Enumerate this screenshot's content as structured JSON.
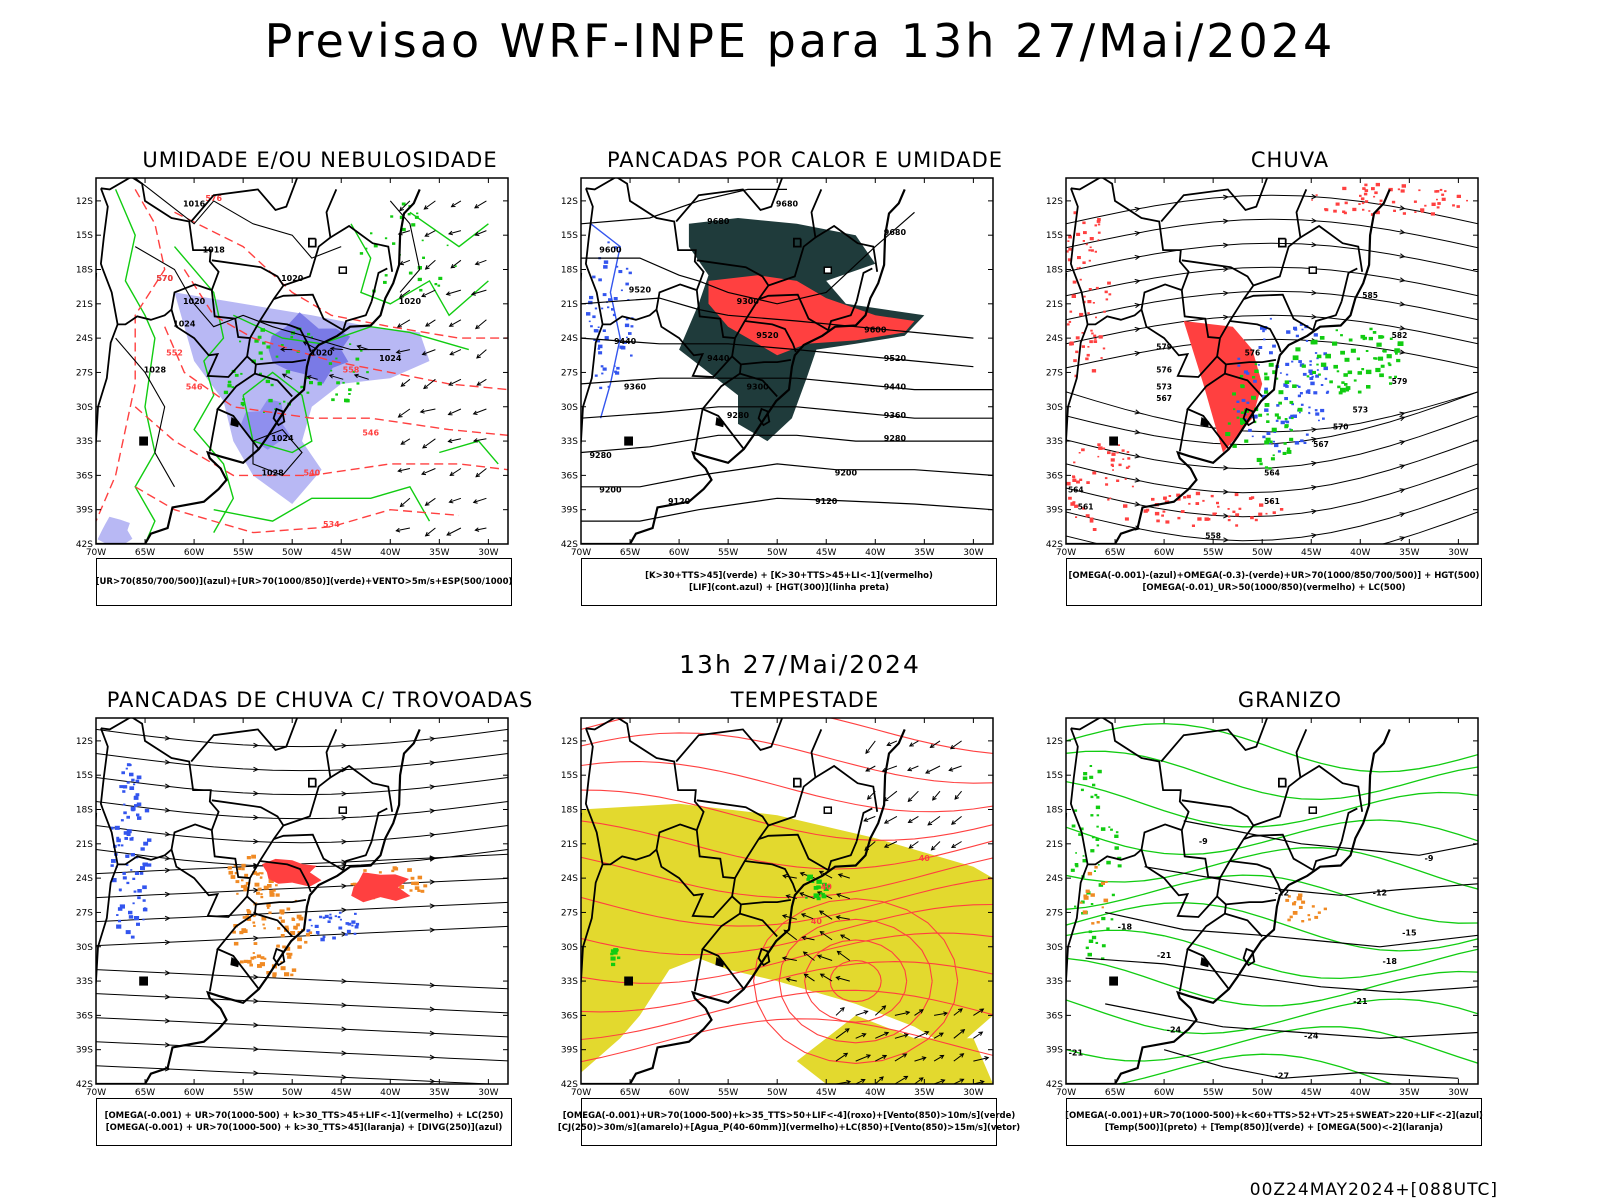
{
  "title": "Previsao WRF-INPE  para 13h 27/Mai/2024",
  "subtitle": "13h 27/Mai/2024",
  "footer": "00Z24MAY2024+[088UTC]",
  "axes": {
    "lat_labels": [
      "12S",
      "15S",
      "18S",
      "21S",
      "24S",
      "27S",
      "30S",
      "33S",
      "36S",
      "39S",
      "42S"
    ],
    "lon_labels": [
      "70W",
      "65W",
      "60W",
      "55W",
      "50W",
      "45W",
      "40W",
      "35W",
      "30W"
    ]
  },
  "colors": {
    "blue": "#3355ee",
    "lavender": "#b8b8f4",
    "green": "#11cc11",
    "red": "#ff4040",
    "darkslate": "#1f3b3b",
    "yellow": "#e3d92e",
    "orange": "#f08a24",
    "black": "#000000"
  },
  "chart_data": [
    {
      "type": "map",
      "title": "UMIDADE E/OU NEBULOSIDADE",
      "legend": [
        "[UR>70(850/700/500)](azul)+[UR>70(1000/850)](verde)+VENTO>5m/s+ESP(500/1000)"
      ],
      "contour_labels": [
        {
          "text": "1016",
          "lon": -60,
          "lat": -12.5
        },
        {
          "text": "1018",
          "lon": -58,
          "lat": -16.5
        },
        {
          "text": "1020",
          "lon": -50,
          "lat": -19
        },
        {
          "text": "1020",
          "lon": -60,
          "lat": -21
        },
        {
          "text": "1024",
          "lon": -61,
          "lat": -23
        },
        {
          "text": "1028",
          "lon": -64,
          "lat": -27
        },
        {
          "text": "1020",
          "lon": -47,
          "lat": -25.5
        },
        {
          "text": "1024",
          "lon": -40,
          "lat": -26
        },
        {
          "text": "1024",
          "lon": -51,
          "lat": -33
        },
        {
          "text": "1028",
          "lon": -52,
          "lat": -36
        },
        {
          "text": "1020",
          "lon": -38,
          "lat": -21
        },
        {
          "text": "570",
          "lon": -63,
          "lat": -19
        },
        {
          "text": "576",
          "lon": -58,
          "lat": -12
        },
        {
          "text": "546",
          "lon": -60,
          "lat": -28.5
        },
        {
          "text": "552",
          "lon": -62,
          "lat": -25.5
        },
        {
          "text": "540",
          "lon": -48,
          "lat": -36
        },
        {
          "text": "534",
          "lon": -46,
          "lat": -40.5
        },
        {
          "text": "546",
          "lon": -42,
          "lat": -32.5
        },
        {
          "text": "558",
          "lon": -44,
          "lat": -27
        }
      ]
    },
    {
      "type": "map",
      "title": "PANCADAS POR CALOR E UMIDADE",
      "legend": [
        "[K>30+TTS>45](verde) + [K>30+TTS>45+LI<-1](vermelho)",
        "[LIF](cont.azul) + [HGT(300)](linha preta)"
      ],
      "contour_labels": [
        {
          "text": "9680",
          "lon": -56,
          "lat": -14
        },
        {
          "text": "9680",
          "lon": -49,
          "lat": -12.5
        },
        {
          "text": "9680",
          "lon": -38,
          "lat": -15
        },
        {
          "text": "9600",
          "lon": -67,
          "lat": -16.5
        },
        {
          "text": "9520",
          "lon": -64,
          "lat": -20
        },
        {
          "text": "9440",
          "lon": -65.5,
          "lat": -24.5
        },
        {
          "text": "9360",
          "lon": -64.5,
          "lat": -28.5
        },
        {
          "text": "9300",
          "lon": -53,
          "lat": -21
        },
        {
          "text": "9520",
          "lon": -51,
          "lat": -24
        },
        {
          "text": "9440",
          "lon": -56,
          "lat": -26
        },
        {
          "text": "9300",
          "lon": -52,
          "lat": -28.5
        },
        {
          "text": "9280",
          "lon": -54,
          "lat": -31
        },
        {
          "text": "9600",
          "lon": -40,
          "lat": -23.5
        },
        {
          "text": "9520",
          "lon": -38,
          "lat": -26
        },
        {
          "text": "9440",
          "lon": -38,
          "lat": -28.5
        },
        {
          "text": "9360",
          "lon": -38,
          "lat": -31
        },
        {
          "text": "9280",
          "lon": -38,
          "lat": -33
        },
        {
          "text": "9200",
          "lon": -43,
          "lat": -36
        },
        {
          "text": "9120",
          "lon": -45,
          "lat": -38.5
        },
        {
          "text": "9280",
          "lon": -68,
          "lat": -34.5
        },
        {
          "text": "9200",
          "lon": -67,
          "lat": -37.5
        },
        {
          "text": "9120",
          "lon": -60,
          "lat": -38.5
        }
      ]
    },
    {
      "type": "map",
      "title": "CHUVA",
      "legend": [
        "[OMEGA(-0.001)-(azul)+OMEGA(-0.3)-(verde)+UR>70(1000/850/700/500)] + HGT(500)",
        "[OMEGA(-0.01)_UR>50(1000/850)(vermelho) + LC(500)"
      ],
      "contour_labels": [
        {
          "text": "585",
          "lon": -39,
          "lat": -20.5
        },
        {
          "text": "582",
          "lon": -36,
          "lat": -24
        },
        {
          "text": "579",
          "lon": -36,
          "lat": -28
        },
        {
          "text": "576",
          "lon": -51,
          "lat": -25.5
        },
        {
          "text": "579",
          "lon": -60,
          "lat": -25
        },
        {
          "text": "576",
          "lon": -60,
          "lat": -27
        },
        {
          "text": "573",
          "lon": -60,
          "lat": -28.5
        },
        {
          "text": "567",
          "lon": -60,
          "lat": -29.5
        },
        {
          "text": "573",
          "lon": -40,
          "lat": -30.5
        },
        {
          "text": "570",
          "lon": -42,
          "lat": -32
        },
        {
          "text": "567",
          "lon": -44,
          "lat": -33.5
        },
        {
          "text": "564",
          "lon": -49,
          "lat": -36
        },
        {
          "text": "561",
          "lon": -49,
          "lat": -38.5
        },
        {
          "text": "558",
          "lon": -55,
          "lat": -41.5
        },
        {
          "text": "564",
          "lon": -69,
          "lat": -37.5
        },
        {
          "text": "561",
          "lon": -68,
          "lat": -39
        }
      ]
    },
    {
      "type": "map",
      "title": "PANCADAS DE CHUVA C/ TROVOADAS",
      "legend": [
        "[OMEGA(-0.001) + UR>70(1000-500) + k>30_TTS>45+LIF<-1](vermelho) + LC(250)",
        "[OMEGA(-0.001) + UR>70(1000-500) + k>30_TTS>45](laranja) + [DIVG(250)](azul)"
      ],
      "contour_labels": []
    },
    {
      "type": "map",
      "title": "TEMPESTADE",
      "legend": [
        "[OMEGA(-0.001)+UR>70(1000-500)+k>35_TTS>50+LIF<-4](roxo)+[Vento(850)>10m/s](verde)",
        "[CJ(250)>30m/s](amarelo)+[Agua_P(40-60mm)](vermelho)+LC(850)+[Vento(850)>15m/s](vetor)"
      ],
      "contour_labels": [
        {
          "text": "40",
          "lon": -35,
          "lat": -22.5
        },
        {
          "text": "40",
          "lon": -45,
          "lat": -25
        },
        {
          "text": "40",
          "lon": -46,
          "lat": -28
        }
      ]
    },
    {
      "type": "map",
      "title": "GRANIZO",
      "legend": [
        "[OMEGA(-0.001)+UR>70(1000-500)+k<60+TTS>52+VT>25+SWEAT>220+LIF<-2](azul)",
        "[Temp(500)](preto) + [Temp(850)](verde) + [OMEGA(500)<-2](laranja)"
      ],
      "contour_labels": [
        {
          "text": "-9",
          "lon": -56,
          "lat": -21
        },
        {
          "text": "-9",
          "lon": -33,
          "lat": -22.5
        },
        {
          "text": "-12",
          "lon": -38,
          "lat": -25.5
        },
        {
          "text": "-12",
          "lon": -48,
          "lat": -25.5
        },
        {
          "text": "-15",
          "lon": -35,
          "lat": -29
        },
        {
          "text": "-18",
          "lon": -64,
          "lat": -28.5
        },
        {
          "text": "-18",
          "lon": -37,
          "lat": -31.5
        },
        {
          "text": "-21",
          "lon": -60,
          "lat": -31
        },
        {
          "text": "-21",
          "lon": -40,
          "lat": -35
        },
        {
          "text": "-24",
          "lon": -59,
          "lat": -37.5
        },
        {
          "text": "-24",
          "lon": -45,
          "lat": -38
        },
        {
          "text": "-27",
          "lon": -48,
          "lat": -41.5
        },
        {
          "text": "-21",
          "lon": -69,
          "lat": -39.5
        }
      ]
    }
  ]
}
